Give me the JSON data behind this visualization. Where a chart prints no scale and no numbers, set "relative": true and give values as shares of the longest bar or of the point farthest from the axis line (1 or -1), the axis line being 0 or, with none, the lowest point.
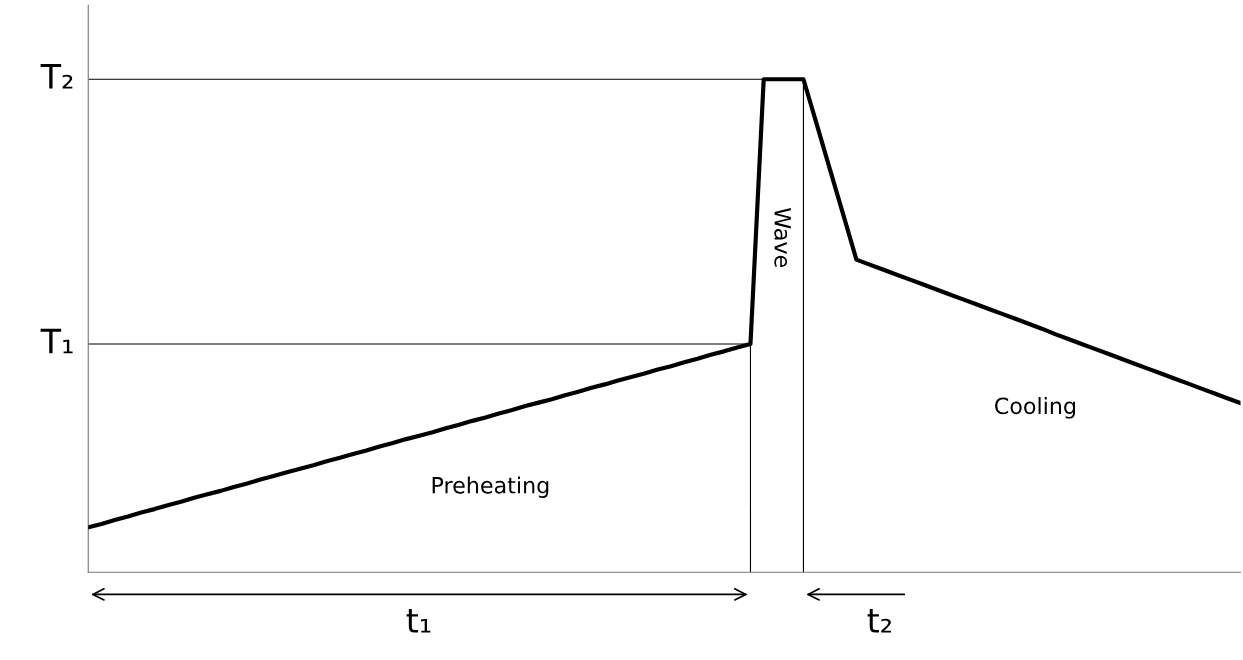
{
  "chart_data": {
    "type": "line",
    "relative": true,
    "categories": [
      null,
      null,
      null,
      null,
      null,
      null,
      null,
      null,
      null,
      null,
      null,
      null,
      null,
      null,
      null,
      null,
      null,
      null,
      null,
      null,
      null,
      null,
      null,
      null,
      null,
      null,
      null,
      null,
      null,
      null,
      null,
      null,
      null,
      null,
      null,
      null,
      null,
      null,
      null,
      null,
      null,
      null,
      null,
      null,
      null,
      null,
      null,
      null,
      null,
      null,
      null,
      null,
      null,
      null,
      null,
      null,
      null,
      null,
      null,
      null,
      null,
      null,
      null,
      null,
      null,
      null,
      null,
      null,
      null,
      null,
      null,
      null,
      null,
      null,
      null,
      null,
      null,
      null,
      null,
      null,
      null,
      null,
      null,
      null,
      null,
      null,
      null,
      null
    ],
    "series": [
      {
        "color": "#000000",
        "values": [
          0.091,
          0.098,
          0.106,
          0.113,
          0.121,
          0.128,
          0.136,
          0.143,
          0.151,
          0.158,
          0.165,
          0.173,
          0.18,
          0.188,
          0.195,
          0.203,
          0.21,
          0.217,
          0.225,
          0.232,
          0.24,
          0.247,
          0.255,
          0.262,
          0.27,
          0.277,
          0.284,
          0.292,
          0.299,
          0.307,
          0.314,
          0.322,
          0.329,
          0.337,
          0.344,
          0.351,
          0.359,
          0.366,
          0.374,
          0.381,
          0.389,
          0.396,
          0.403,
          0.411,
          0.418,
          0.426,
          0.433,
          0.441,
          0.448,
          0.456,
          0.463,
          1.0,
          1.0,
          1.0,
          1.0,
          0.909,
          0.817,
          0.726,
          0.634,
          0.624,
          0.614,
          0.604,
          0.594,
          0.584,
          0.574,
          0.564,
          0.554,
          0.544,
          0.534,
          0.524,
          0.514,
          0.504,
          0.494,
          0.483,
          0.473,
          0.463,
          0.453,
          0.443,
          0.433,
          0.423,
          0.413,
          0.403,
          0.393,
          0.383,
          0.373,
          0.363,
          0.353,
          0.343
        ]
      }
    ],
    "ref_lines": [
      {
        "axis": "y",
        "value": 0.463,
        "label": "T₁",
        "color": "#000000"
      },
      {
        "axis": "y",
        "value": 1.0,
        "label": "T₂",
        "color": "#000000"
      }
    ],
    "annotations": [
      "Preheating",
      "Wave",
      "Cooling",
      "t₁",
      "t₂"
    ],
    "marker": "none",
    "line_style": "solid"
  }
}
